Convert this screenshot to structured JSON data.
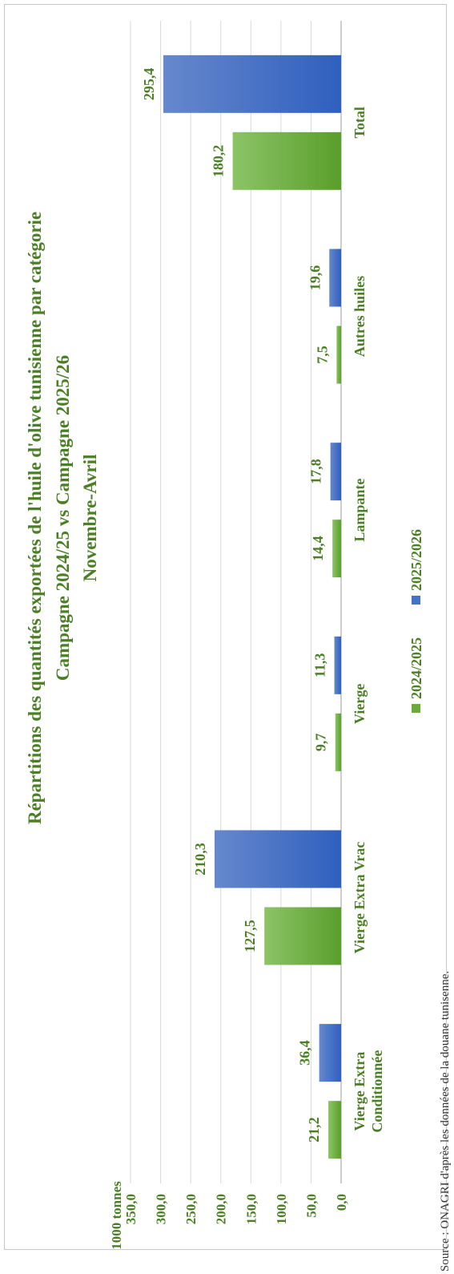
{
  "chart_data": {
    "type": "bar",
    "title_lines": [
      "Répartitions des quantités exportées de l'huile d'olive tunisienne par catégorie",
      "Campagne 2024/25 vs Campagne 2025/26",
      "Novembre-Avril"
    ],
    "ylabel": "1000 tonnes",
    "ylim": [
      0,
      350
    ],
    "yticks": [
      "0,0",
      "50,0",
      "100,0",
      "150,0",
      "200,0",
      "250,0",
      "300,0",
      "350,0"
    ],
    "ytick_values": [
      0,
      50,
      100,
      150,
      200,
      250,
      300,
      350
    ],
    "categories": [
      [
        "Vierge Extra",
        "Conditionnée"
      ],
      [
        "Vierge Extra Vrac"
      ],
      [
        "Vierge"
      ],
      [
        "Lampante"
      ],
      [
        "Autres huiles"
      ],
      [
        "Total"
      ]
    ],
    "series": [
      {
        "name": "2024/2025",
        "color": "#6aaa3a",
        "values": [
          21.2,
          127.5,
          9.7,
          14.4,
          7.5,
          180.2
        ],
        "labels": [
          "21,2",
          "127,5",
          "9,7",
          "14,4",
          "7,5",
          "180,2"
        ]
      },
      {
        "name": "2025/2026",
        "color": "#4472c4",
        "values": [
          36.4,
          210.3,
          11.3,
          17.8,
          19.6,
          295.4
        ],
        "labels": [
          "36,4",
          "210,3",
          "11,3",
          "17,8",
          "19,6",
          "295,4"
        ]
      }
    ],
    "grid": true,
    "legend_position": "bottom",
    "orientation": "rotated-90-ccw"
  },
  "source": "Source : ONAGRI d'après les données de la douane tunisenne."
}
